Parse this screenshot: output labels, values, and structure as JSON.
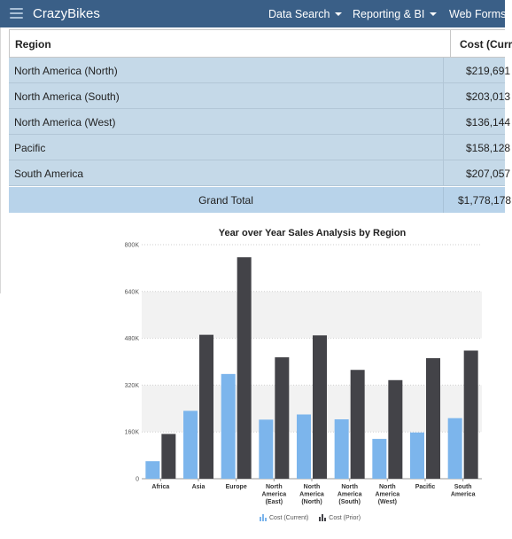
{
  "navbar": {
    "brand": "CrazyBikes",
    "items": [
      {
        "label": "Data Search",
        "has_caret": true
      },
      {
        "label": "Reporting & BI",
        "has_caret": true
      },
      {
        "label": "Web Forms",
        "has_caret": false
      }
    ]
  },
  "grid": {
    "columns": [
      "Region",
      "Cost (Curr"
    ],
    "rows": [
      {
        "region": "North America (North)",
        "cost": "$219,691"
      },
      {
        "region": "North America (South)",
        "cost": "$203,013"
      },
      {
        "region": "North America (West)",
        "cost": "$136,144"
      },
      {
        "region": "Pacific",
        "cost": "$158,128"
      },
      {
        "region": "South America",
        "cost": "$207,057"
      }
    ],
    "total_label": "Grand Total",
    "total_value": "$1,778,178"
  },
  "chart_data": {
    "type": "bar",
    "title": "Year over Year Sales Analysis by Region",
    "categories": [
      "Africa",
      "Asia",
      "Europe",
      "North America (East)",
      "North America (North)",
      "North America (South)",
      "North America (West)",
      "Pacific",
      "South America"
    ],
    "category_lines": [
      [
        "Africa"
      ],
      [
        "Asia"
      ],
      [
        "Europe"
      ],
      [
        "North",
        "America",
        "(East)"
      ],
      [
        "North",
        "America",
        "(North)"
      ],
      [
        "North",
        "America",
        "(South)"
      ],
      [
        "North",
        "America",
        "(West)"
      ],
      [
        "Pacific"
      ],
      [
        "South",
        "America"
      ]
    ],
    "series": [
      {
        "name": "Cost (Current)",
        "color": "#7cb5ec",
        "values": [
          60000,
          232000,
          358000,
          202000,
          219691,
          203013,
          136144,
          158128,
          207057
        ]
      },
      {
        "name": "Cost (Prior)",
        "color": "#434348",
        "values": [
          153000,
          492000,
          757000,
          415000,
          490000,
          372000,
          337000,
          412000,
          438000
        ]
      }
    ],
    "yticks": [
      0,
      160000,
      320000,
      480000,
      640000,
      800000
    ],
    "ytick_labels": [
      "0",
      "160K",
      "320K",
      "480K",
      "640K",
      "800K"
    ],
    "ylim": [
      0,
      800000
    ],
    "grid": true,
    "legend_position": "bottom-center"
  }
}
